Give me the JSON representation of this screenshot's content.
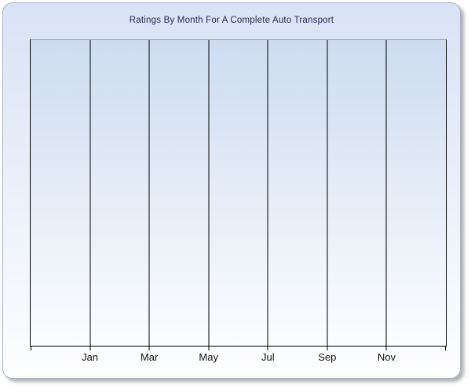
{
  "chart": {
    "title": "Ratings By Month For A Complete Auto Transport",
    "x_labels": [
      "Jan",
      "Mar",
      "May",
      "Jul",
      "Sep",
      "Nov"
    ],
    "x_divisions": 7
  },
  "chart_data": {
    "type": "line",
    "title": "Ratings By Month For A Complete Auto Transport",
    "categories": [
      "Jan",
      "Mar",
      "May",
      "Jul",
      "Sep",
      "Nov"
    ],
    "series": [],
    "xlabel": "",
    "ylabel": "",
    "legend": "none",
    "grid": "vertical-only",
    "plot_empty": true
  },
  "colors": {
    "panel_border": "#a9b5c6",
    "panel_top": "#d8e3f5",
    "panel_bottom": "#fefeff",
    "plot_top": "#cddcf0",
    "plot_bottom": "#fcfdff",
    "plot_top_border": "#a3abba",
    "grid_line": "#000000",
    "title_color": "#262650",
    "label_color": "#111111"
  }
}
